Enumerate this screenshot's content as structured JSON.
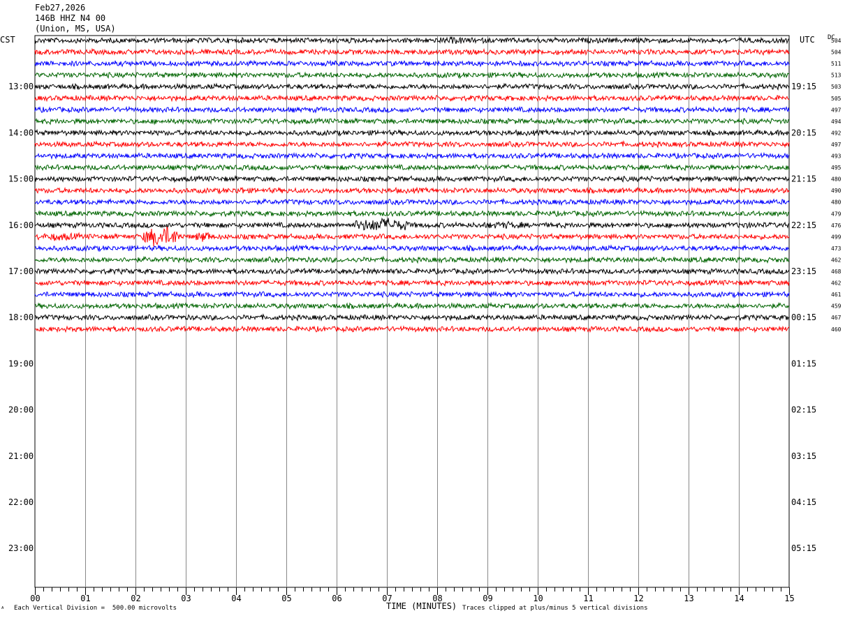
{
  "header": {
    "date": "Feb27,2026",
    "station": "146B HHZ N4 00",
    "location": "(Union, MS, USA)"
  },
  "labels": {
    "left_zone": "CST",
    "right_zone": "UTC",
    "dc_header": "DC",
    "x_axis_title": "TIME (MINUTES)",
    "scale_note": "Each Vertical Division =  500.00 microvolts",
    "clip_note": "Traces clipped at plus/minus 5 vertical divisions",
    "corner_mark": "ᴬ"
  },
  "chart_data": {
    "type": "line",
    "title": "",
    "xlabel": "TIME (MINUTES)",
    "xlim": [
      0,
      15
    ],
    "x_ticks": [
      "00",
      "01",
      "02",
      "03",
      "04",
      "05",
      "06",
      "07",
      "08",
      "09",
      "10",
      "11",
      "12",
      "13",
      "14",
      "15"
    ],
    "hour_labels_cst": [
      "13:00",
      "14:00",
      "15:00",
      "16:00",
      "17:00",
      "18:00",
      "19:00",
      "20:00",
      "21:00",
      "22:00",
      "23:00"
    ],
    "hour_labels_utc": [
      "19:15",
      "20:15",
      "21:15",
      "22:15",
      "23:15",
      "00:15",
      "01:15",
      "02:15",
      "03:15",
      "04:15",
      "05:15"
    ],
    "trace_colors": [
      "#000000",
      "#ff0000",
      "#0000ff",
      "#006400"
    ],
    "dc_offsets": [
      504,
      504,
      511,
      513,
      503,
      505,
      497,
      494,
      492,
      497,
      493,
      495,
      480,
      490,
      480,
      479,
      476,
      499,
      473,
      462,
      468,
      462,
      461,
      459,
      467,
      460
    ],
    "events": [
      {
        "trace": 16,
        "start_min": 6.35,
        "end_min": 7.45,
        "amplitude": 3.0
      },
      {
        "trace": 16,
        "start_min": 8.9,
        "end_min": 9.7,
        "amplitude": 1.5
      },
      {
        "trace": 16,
        "start_min": 13.9,
        "end_min": 14.4,
        "amplitude": 1.3
      },
      {
        "trace": 17,
        "start_min": 0.05,
        "end_min": 0.9,
        "amplitude": 1.6
      },
      {
        "trace": 17,
        "start_min": 2.15,
        "end_min": 2.9,
        "amplitude": 4.5
      },
      {
        "trace": 17,
        "start_min": 3.2,
        "end_min": 3.5,
        "amplitude": 2.5
      },
      {
        "trace": 13,
        "start_min": 4.0,
        "end_min": 4.15,
        "amplitude": 2.0
      },
      {
        "trace": 0,
        "start_min": 8.0,
        "end_min": 8.7,
        "amplitude": 1.4
      }
    ]
  }
}
